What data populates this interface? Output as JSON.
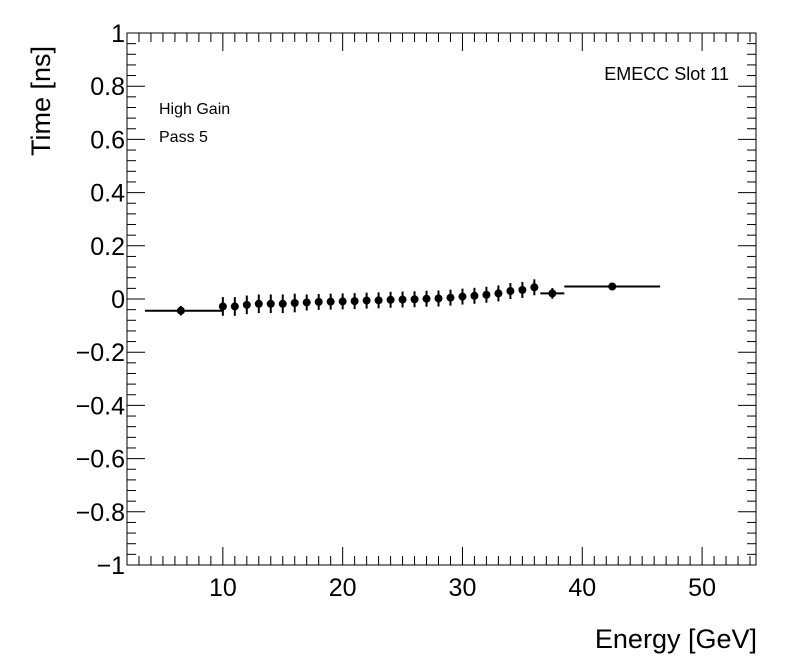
{
  "chart_data": {
    "type": "scatter",
    "title": "",
    "xlabel": "Energy [GeV]",
    "ylabel": "Time [ns]",
    "xlim": [
      2,
      54.5
    ],
    "ylim": [
      -1,
      1
    ],
    "x_ticks": [
      10,
      20,
      30,
      40,
      50
    ],
    "y_ticks": [
      -1,
      -0.8,
      -0.6,
      -0.4,
      -0.2,
      0,
      0.2,
      0.4,
      0.6,
      0.8,
      1
    ],
    "x_tick_labels": [
      "10",
      "20",
      "30",
      "40",
      "50"
    ],
    "y_tick_labels": [
      "−1",
      "−0.8",
      "−0.6",
      "−0.4",
      "−0.2",
      "0",
      "0.2",
      "0.4",
      "0.6",
      "0.8",
      "1"
    ],
    "grid": false,
    "annotations": {
      "gain": "High Gain",
      "pass": "Pass 5",
      "slot": "EMECC Slot 11"
    },
    "series": [
      {
        "points": [
          {
            "x": 6.5,
            "y": -0.044,
            "xerr": [
              3.5,
              10.0
            ],
            "yerr": 0.018
          },
          {
            "x": 10.0,
            "y": -0.028,
            "yerr": 0.035
          },
          {
            "x": 11.0,
            "y": -0.028,
            "yerr": 0.035
          },
          {
            "x": 12.0,
            "y": -0.022,
            "yerr": 0.035
          },
          {
            "x": 13.0,
            "y": -0.018,
            "yerr": 0.035
          },
          {
            "x": 14.0,
            "y": -0.018,
            "yerr": 0.035
          },
          {
            "x": 15.0,
            "y": -0.018,
            "yerr": 0.035
          },
          {
            "x": 16.0,
            "y": -0.015,
            "yerr": 0.035
          },
          {
            "x": 17.0,
            "y": -0.013,
            "yerr": 0.03
          },
          {
            "x": 18.0,
            "y": -0.011,
            "yerr": 0.03
          },
          {
            "x": 19.0,
            "y": -0.01,
            "yerr": 0.03
          },
          {
            "x": 20.0,
            "y": -0.009,
            "yerr": 0.03
          },
          {
            "x": 21.0,
            "y": -0.008,
            "yerr": 0.03
          },
          {
            "x": 22.0,
            "y": -0.006,
            "yerr": 0.03
          },
          {
            "x": 23.0,
            "y": -0.005,
            "yerr": 0.03
          },
          {
            "x": 24.0,
            "y": -0.003,
            "yerr": 0.03
          },
          {
            "x": 25.0,
            "y": -0.002,
            "yerr": 0.03
          },
          {
            "x": 26.0,
            "y": -0.001,
            "yerr": 0.03
          },
          {
            "x": 27.0,
            "y": 0.001,
            "yerr": 0.03
          },
          {
            "x": 28.0,
            "y": 0.002,
            "yerr": 0.03
          },
          {
            "x": 29.0,
            "y": 0.005,
            "yerr": 0.03
          },
          {
            "x": 30.0,
            "y": 0.009,
            "yerr": 0.03
          },
          {
            "x": 31.0,
            "y": 0.012,
            "yerr": 0.03
          },
          {
            "x": 32.0,
            "y": 0.016,
            "yerr": 0.03
          },
          {
            "x": 33.0,
            "y": 0.021,
            "yerr": 0.03
          },
          {
            "x": 34.0,
            "y": 0.03,
            "yerr": 0.03
          },
          {
            "x": 35.0,
            "y": 0.034,
            "yerr": 0.03
          },
          {
            "x": 36.0,
            "y": 0.044,
            "yerr": 0.03
          },
          {
            "x": 37.5,
            "y": 0.021,
            "xerr": [
              36.5,
              38.5
            ],
            "yerr": 0.02
          },
          {
            "x": 42.5,
            "y": 0.047,
            "xerr": [
              38.5,
              46.5
            ],
            "yerr": 0.012
          }
        ]
      }
    ]
  }
}
